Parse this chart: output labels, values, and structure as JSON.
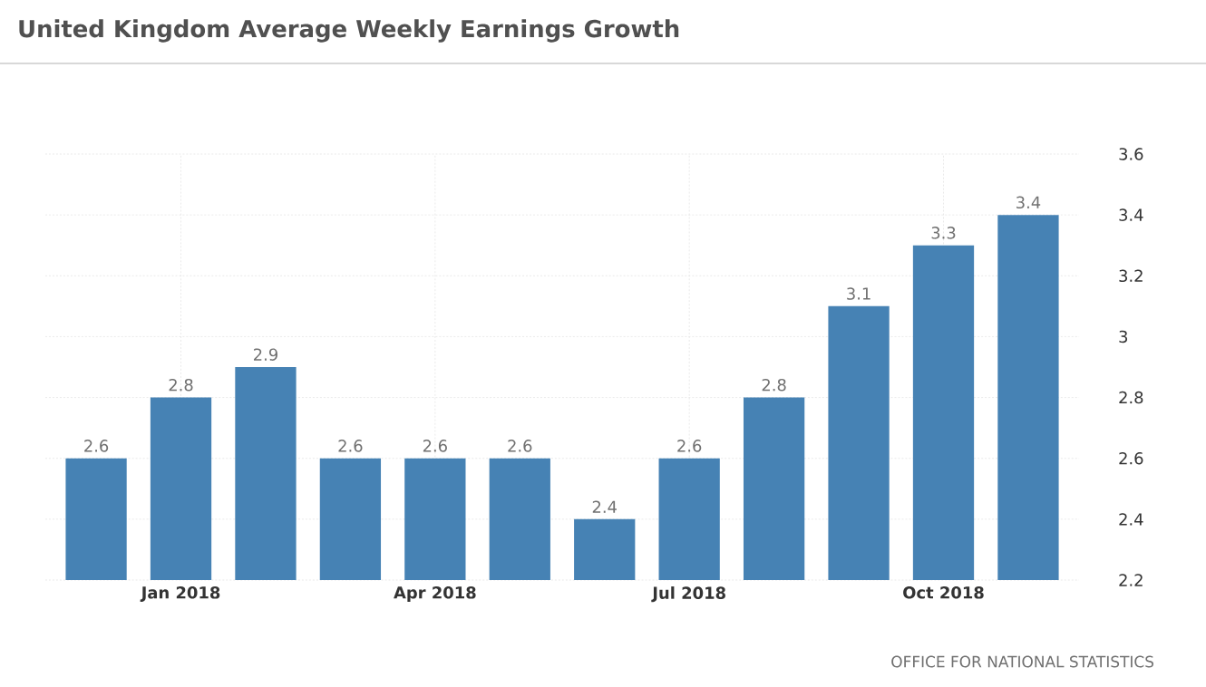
{
  "chart_data": {
    "type": "bar",
    "title": "United Kingdom Average Weekly Earnings Growth",
    "categories": [
      null,
      "Jan 2018",
      null,
      null,
      "Apr 2018",
      null,
      null,
      "Jul 2018",
      null,
      null,
      "Oct 2018",
      null
    ],
    "values": [
      2.6,
      2.8,
      2.9,
      2.6,
      2.6,
      2.6,
      2.4,
      2.6,
      2.8,
      3.1,
      3.3,
      3.4
    ],
    "color": "#4682b4",
    "data_labels": true,
    "ylim": [
      2.2,
      3.6
    ],
    "yticks": [
      2.2,
      2.4,
      2.6,
      2.8,
      3,
      3.2,
      3.4,
      3.6
    ],
    "grid": true,
    "annotations": [
      "OFFICE FOR NATIONAL STATISTICS"
    ]
  }
}
